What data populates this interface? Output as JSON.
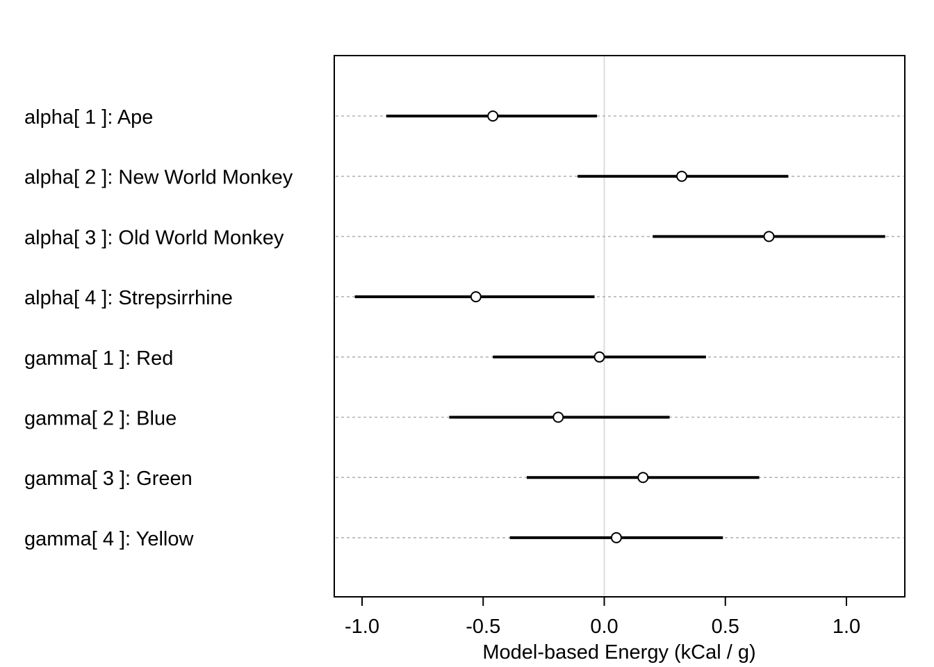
{
  "chart_data": {
    "type": "scatter",
    "title": "",
    "xlabel": "Model-based Energy (kCal / g)",
    "ylabel": "",
    "xlim": [
      -1.1,
      1.24
    ],
    "xticks": [
      -1.0,
      -0.5,
      0.0,
      0.5,
      1.0
    ],
    "xtick_labels": [
      "-1.0",
      "-0.5",
      "0.0",
      "0.5",
      "1.0"
    ],
    "reference_line_x": 0.0,
    "grid": false,
    "legend": "none",
    "colors": {
      "line": "#000000",
      "guide": "#b3b3b3",
      "reference": "#dddddd",
      "frame": "#000000"
    },
    "rows": [
      {
        "label": "alpha[ 1 ]: Ape",
        "mean": -0.46,
        "lower": -0.9,
        "upper": -0.03
      },
      {
        "label": "alpha[ 2 ]: New World Monkey",
        "mean": 0.32,
        "lower": -0.11,
        "upper": 0.76
      },
      {
        "label": "alpha[ 3 ]: Old World Monkey",
        "mean": 0.68,
        "lower": 0.2,
        "upper": 1.16
      },
      {
        "label": "alpha[ 4 ]: Strepsirrhine",
        "mean": -0.53,
        "lower": -1.03,
        "upper": -0.04
      },
      {
        "label": "gamma[ 1 ]: Red",
        "mean": -0.02,
        "lower": -0.46,
        "upper": 0.42
      },
      {
        "label": "gamma[ 2 ]: Blue",
        "mean": -0.19,
        "lower": -0.64,
        "upper": 0.27
      },
      {
        "label": "gamma[ 3 ]: Green",
        "mean": 0.16,
        "lower": -0.32,
        "upper": 0.64
      },
      {
        "label": "gamma[ 4 ]: Yellow",
        "mean": 0.05,
        "lower": -0.39,
        "upper": 0.49
      }
    ]
  }
}
